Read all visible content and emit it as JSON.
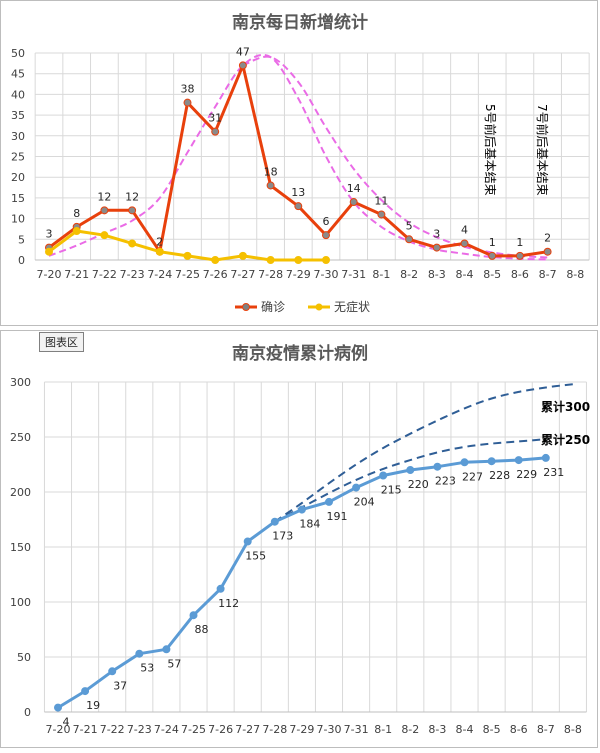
{
  "chart_data": [
    {
      "type": "line",
      "title": "南京每日新增统计",
      "categories": [
        "7-20",
        "7-21",
        "7-22",
        "7-23",
        "7-24",
        "7-25",
        "7-26",
        "7-27",
        "7-28",
        "7-29",
        "7-30",
        "7-31",
        "8-1",
        "8-2",
        "8-3",
        "8-4",
        "8-5",
        "8-6",
        "8-7",
        "8-8"
      ],
      "ylim": [
        0,
        50
      ],
      "yticks": [
        0,
        5,
        10,
        15,
        20,
        25,
        30,
        35,
        40,
        45,
        50
      ],
      "series": [
        {
          "name": "确诊",
          "color": "#e8400c",
          "values": [
            3,
            8,
            12,
            12,
            2,
            38,
            31,
            47,
            18,
            13,
            6,
            14,
            11,
            5,
            3,
            4,
            1,
            1,
            2,
            null
          ]
        },
        {
          "name": "无症状",
          "color": "#f5c000",
          "values": [
            2,
            7,
            6,
            4,
            2,
            1,
            0,
            1,
            0,
            0,
            0,
            null,
            null,
            null,
            null,
            null,
            null,
            null,
            null,
            null
          ]
        }
      ],
      "projections": [
        {
          "color": "#ea6be6",
          "values": [
            1,
            3.5,
            6.5,
            9.5,
            15,
            26,
            37,
            47,
            49,
            39,
            25,
            14,
            8,
            4.5,
            2.5,
            1.5,
            0.7,
            0.3,
            0.1,
            null
          ]
        },
        {
          "color": "#ea6be6",
          "values": [
            null,
            null,
            null,
            null,
            null,
            null,
            null,
            47,
            49,
            43,
            32,
            22,
            14.5,
            9,
            5.5,
            3.2,
            1.8,
            1,
            0.6,
            null
          ]
        }
      ],
      "annotations": [
        "5号前后基本结束",
        "7号前后基本结束"
      ]
    },
    {
      "type": "line",
      "title": "南京疫情累计病例",
      "badge": "图表区",
      "categories": [
        "7-20",
        "7-21",
        "7-22",
        "7-23",
        "7-24",
        "7-25",
        "7-26",
        "7-27",
        "7-28",
        "7-29",
        "7-30",
        "7-31",
        "8-1",
        "8-2",
        "8-3",
        "8-4",
        "8-5",
        "8-6",
        "8-7",
        "8-8"
      ],
      "ylim": [
        0,
        300
      ],
      "yticks": [
        0,
        50,
        100,
        150,
        200,
        250,
        300
      ],
      "series": [
        {
          "name": "累计",
          "color": "#5b9bd5",
          "values": [
            4,
            19,
            37,
            53,
            57,
            88,
            112,
            155,
            173,
            184,
            191,
            204,
            215,
            220,
            223,
            227,
            228,
            229,
            231,
            null
          ]
        }
      ],
      "projections": [
        {
          "label": "累计300",
          "color": "#2f5e96",
          "values": [
            null,
            null,
            null,
            null,
            null,
            null,
            null,
            null,
            173,
            190,
            208,
            225,
            240,
            253,
            265,
            276,
            285,
            291,
            295,
            298
          ]
        },
        {
          "label": "累计250",
          "color": "#2f5e96",
          "values": [
            null,
            null,
            null,
            null,
            null,
            null,
            null,
            null,
            173,
            186,
            199,
            211,
            221,
            229,
            236,
            241,
            244,
            246,
            248,
            null
          ]
        }
      ]
    }
  ]
}
